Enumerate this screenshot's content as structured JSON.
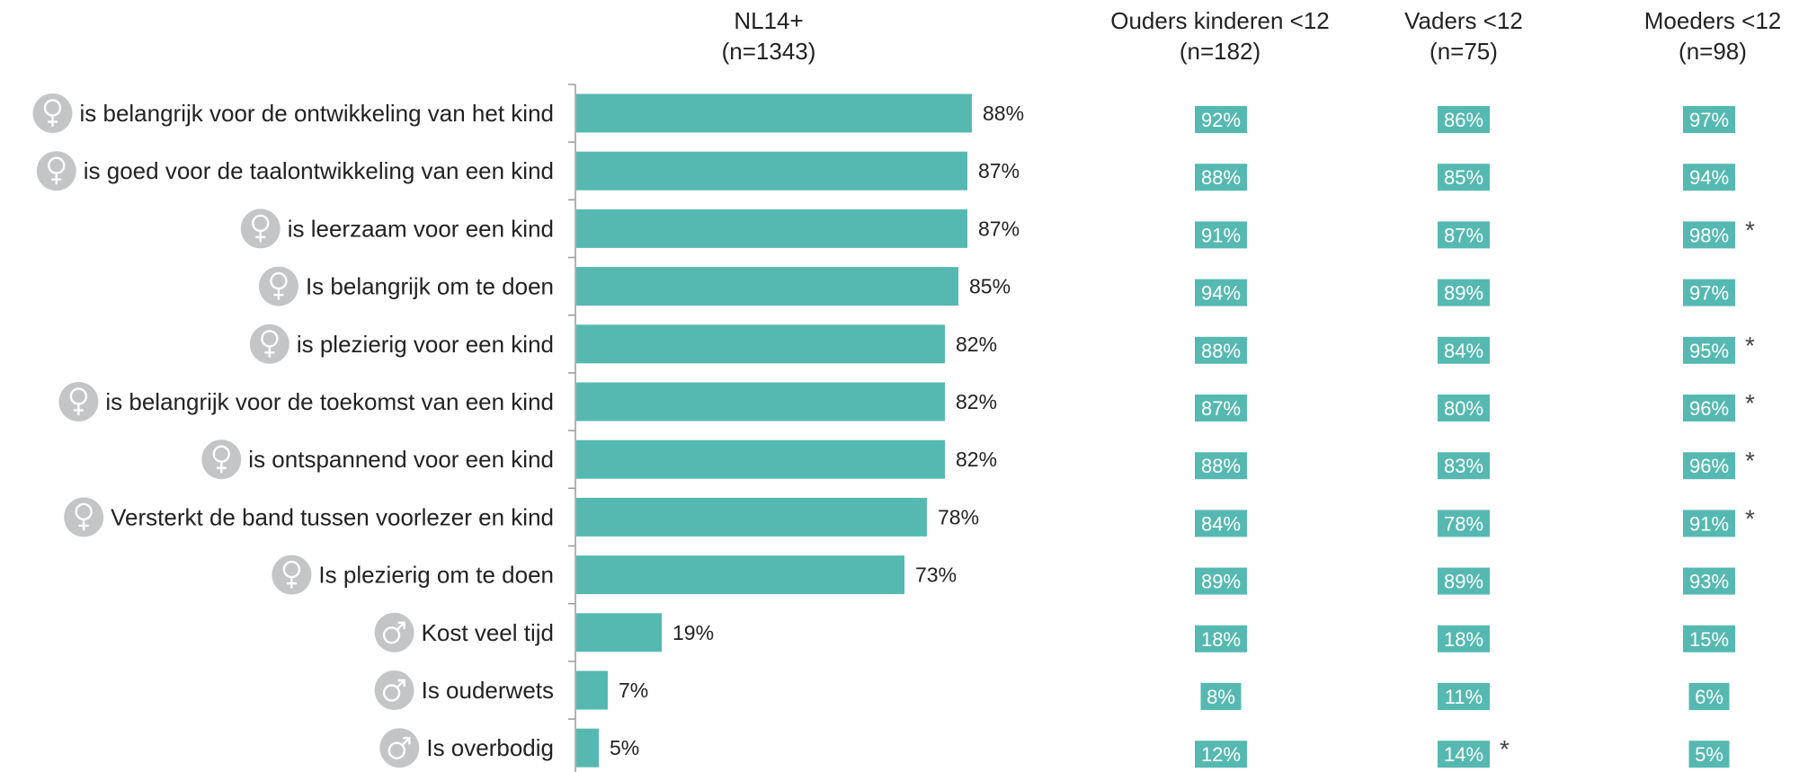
{
  "colors": {
    "bar": "#56b9b1",
    "icon": "#c4c5c7",
    "axis": "#9a9a9a"
  },
  "headers": [
    {
      "title": "NL14+",
      "n": "(n=1343)"
    },
    {
      "title": "Ouders kinderen <12",
      "n": "(n=182)"
    },
    {
      "title": "Vaders <12",
      "n": "(n=75)"
    },
    {
      "title": "Moeders <12",
      "n": "(n=98)"
    }
  ],
  "chart_data": {
    "type": "bar",
    "orientation": "horizontal",
    "categories": [
      "is belangrijk voor de ontwikkeling van het kind",
      "is goed voor de taalontwikkeling van een kind",
      "is leerzaam voor een kind",
      "Is belangrijk om te doen",
      "is plezierig voor een kind",
      "is belangrijk voor de toekomst van een kind",
      "is ontspannend voor een kind",
      "Versterkt de band tussen voorlezer en kind",
      "Is plezierig om te doen",
      "Kost veel tijd",
      "Is ouderwets",
      "Is overbodig"
    ],
    "icons": [
      "female-icon",
      "female-icon",
      "female-icon",
      "female-icon",
      "female-icon",
      "female-icon",
      "female-icon",
      "female-icon",
      "female-icon",
      "male-icon",
      "male-icon",
      "male-icon"
    ],
    "series": [
      {
        "name": "NL14+",
        "values": [
          88,
          87,
          87,
          85,
          82,
          82,
          82,
          78,
          73,
          19,
          7,
          5
        ],
        "labels": [
          "88%",
          "87%",
          "87%",
          "85%",
          "82%",
          "82%",
          "82%",
          "78%",
          "73%",
          "19%",
          "7%",
          "5%"
        ]
      },
      {
        "name": "Ouders kinderen <12",
        "values": [
          92,
          88,
          91,
          94,
          88,
          87,
          88,
          84,
          89,
          18,
          8,
          12
        ],
        "labels": [
          "92%",
          "88%",
          "91%",
          "94%",
          "88%",
          "87%",
          "88%",
          "84%",
          "89%",
          "18%",
          "8%",
          "12%"
        ],
        "stars": []
      },
      {
        "name": "Vaders <12",
        "values": [
          86,
          85,
          87,
          89,
          84,
          80,
          83,
          78,
          89,
          18,
          11,
          14
        ],
        "labels": [
          "86%",
          "85%",
          "87%",
          "89%",
          "84%",
          "80%",
          "83%",
          "78%",
          "89%",
          "18%",
          "11%",
          "14%"
        ],
        "stars": [
          11
        ]
      },
      {
        "name": "Moeders <12",
        "values": [
          97,
          94,
          98,
          97,
          95,
          96,
          96,
          91,
          93,
          15,
          6,
          5
        ],
        "labels": [
          "97%",
          "94%",
          "98%",
          "97%",
          "95%",
          "96%",
          "96%",
          "91%",
          "93%",
          "15%",
          "6%",
          "5%"
        ],
        "stars": [
          2,
          4,
          5,
          6,
          7
        ]
      }
    ],
    "star_symbol": "*",
    "xlim": [
      0,
      100
    ],
    "grid": false,
    "legend": "none"
  }
}
